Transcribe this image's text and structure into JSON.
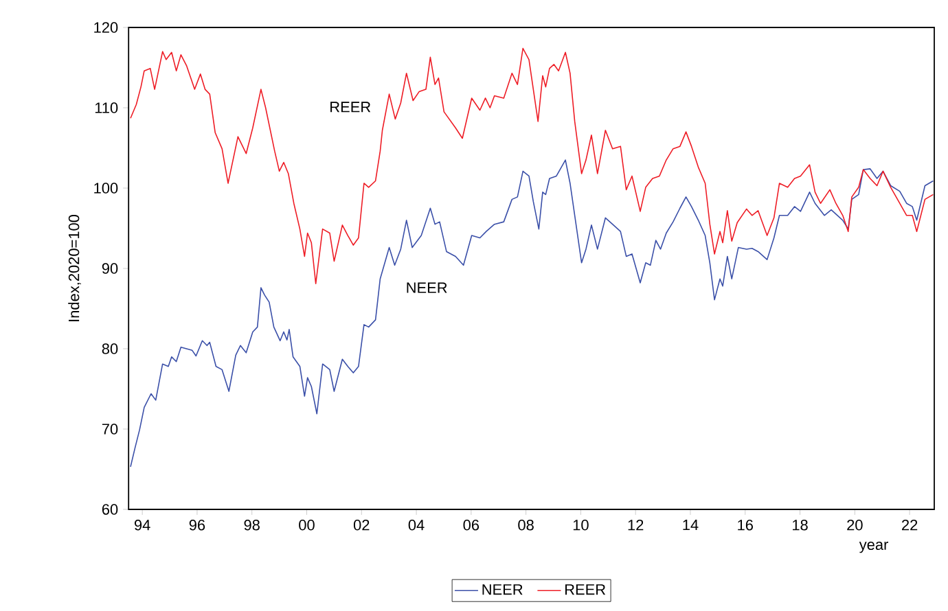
{
  "chart_data": {
    "type": "line",
    "xlabel": "year",
    "ylabel": "Index,2020=100",
    "xlim": [
      1993.5,
      2022.9
    ],
    "ylim": [
      60,
      120
    ],
    "xticks": [
      {
        "value": 1994,
        "label": "94"
      },
      {
        "value": 1996,
        "label": "96"
      },
      {
        "value": 1998,
        "label": "98"
      },
      {
        "value": 2000,
        "label": "00"
      },
      {
        "value": 2002,
        "label": "02"
      },
      {
        "value": 2004,
        "label": "04"
      },
      {
        "value": 2006,
        "label": "06"
      },
      {
        "value": 2008,
        "label": "08"
      },
      {
        "value": 2010,
        "label": "10"
      },
      {
        "value": 2012,
        "label": "12"
      },
      {
        "value": 2014,
        "label": "14"
      },
      {
        "value": 2016,
        "label": "16"
      },
      {
        "value": 2018,
        "label": "18"
      },
      {
        "value": 2020,
        "label": "20"
      },
      {
        "value": 2022,
        "label": "22"
      }
    ],
    "yticks": [
      60,
      70,
      80,
      90,
      100,
      110,
      120
    ],
    "grid": false,
    "legend": "bottom",
    "marker": "none",
    "line_style": "solid",
    "annotations": [
      "REER",
      "NEER"
    ],
    "series": [
      {
        "name": "NEER",
        "color": "#3a4fa8",
        "x": [
          1993.57,
          1993.73,
          1993.9,
          1994.07,
          1994.32,
          1994.49,
          1994.74,
          1994.95,
          1995.07,
          1995.24,
          1995.41,
          1995.82,
          1995.96,
          1996.19,
          1996.36,
          1996.46,
          1996.69,
          1996.91,
          1997.16,
          1997.41,
          1997.58,
          1997.79,
          1998.03,
          1998.2,
          1998.33,
          1998.46,
          1998.63,
          1998.8,
          1999.03,
          1999.16,
          1999.28,
          1999.36,
          1999.5,
          1999.75,
          1999.92,
          2000.03,
          2000.17,
          2000.37,
          2000.58,
          2000.84,
          2001.0,
          2001.3,
          2001.5,
          2001.7,
          2001.89,
          2002.09,
          2002.26,
          2002.51,
          2002.68,
          2003.01,
          2003.21,
          2003.43,
          2003.64,
          2003.85,
          2004.18,
          2004.51,
          2004.68,
          2004.85,
          2005.1,
          2005.43,
          2005.72,
          2006.02,
          2006.32,
          2006.55,
          2006.85,
          2007.19,
          2007.49,
          2007.69,
          2007.89,
          2008.11,
          2008.27,
          2008.47,
          2008.61,
          2008.72,
          2008.86,
          2009.11,
          2009.44,
          2009.61,
          2009.78,
          2010.03,
          2010.19,
          2010.39,
          2010.61,
          2010.9,
          2011.16,
          2011.45,
          2011.66,
          2011.87,
          2012.17,
          2012.37,
          2012.54,
          2012.74,
          2012.91,
          2013.12,
          2013.37,
          2013.62,
          2013.84,
          2014.04,
          2014.29,
          2014.54,
          2014.71,
          2014.88,
          2015.08,
          2015.18,
          2015.35,
          2015.51,
          2015.75,
          2016.05,
          2016.25,
          2016.47,
          2016.8,
          2017.05,
          2017.25,
          2017.55,
          2017.8,
          2018.02,
          2018.35,
          2018.55,
          2018.89,
          2019.14,
          2019.56,
          2019.76,
          2019.89,
          2020.14,
          2020.31,
          2020.56,
          2020.81,
          2021.03,
          2021.31,
          2021.64,
          2021.89,
          2022.1,
          2022.26,
          2022.56,
          2022.86
        ],
        "values": [
          65.3,
          67.6,
          69.9,
          72.7,
          74.4,
          73.6,
          78.1,
          77.8,
          79.0,
          78.4,
          80.2,
          79.8,
          79.1,
          81.0,
          80.4,
          80.8,
          77.8,
          77.4,
          74.7,
          79.2,
          80.4,
          79.5,
          82.1,
          82.7,
          87.6,
          86.7,
          85.8,
          82.7,
          81.0,
          82.1,
          81.1,
          82.4,
          79.0,
          77.8,
          74.1,
          76.4,
          75.3,
          71.9,
          78.1,
          77.4,
          74.7,
          78.7,
          77.8,
          77.0,
          77.8,
          83.0,
          82.7,
          83.6,
          88.7,
          92.6,
          90.4,
          92.4,
          96.0,
          92.6,
          94.1,
          97.5,
          95.5,
          95.8,
          92.1,
          91.5,
          90.4,
          94.1,
          93.8,
          94.6,
          95.5,
          95.8,
          98.6,
          98.9,
          102.1,
          101.5,
          98.3,
          94.9,
          99.5,
          99.2,
          101.2,
          101.5,
          103.5,
          100.6,
          96.6,
          90.7,
          92.4,
          95.4,
          92.4,
          96.3,
          95.5,
          94.6,
          91.5,
          91.8,
          88.2,
          90.7,
          90.4,
          93.5,
          92.4,
          94.4,
          95.8,
          97.5,
          98.9,
          97.7,
          96.0,
          94.1,
          90.7,
          86.1,
          88.7,
          87.8,
          91.5,
          88.7,
          92.6,
          92.4,
          92.5,
          92.1,
          91.1,
          93.8,
          96.6,
          96.6,
          97.7,
          97.1,
          99.5,
          98.1,
          96.6,
          97.3,
          96.0,
          94.9,
          98.6,
          99.2,
          102.3,
          102.4,
          101.2,
          102.1,
          100.3,
          99.6,
          98.1,
          97.7,
          96.0,
          100.3,
          100.9
        ]
      },
      {
        "name": "REER",
        "color": "#ee1c25",
        "x": [
          1993.57,
          1993.78,
          1993.95,
          1994.07,
          1994.29,
          1994.45,
          1994.74,
          1994.87,
          1995.07,
          1995.24,
          1995.41,
          1995.62,
          1995.91,
          1996.12,
          1996.29,
          1996.46,
          1996.66,
          1996.91,
          1997.13,
          1997.49,
          1997.79,
          1998.03,
          1998.33,
          1998.5,
          1998.83,
          1999.0,
          1999.16,
          1999.33,
          1999.53,
          1999.75,
          1999.92,
          2000.03,
          2000.17,
          2000.33,
          2000.58,
          2000.84,
          2001.0,
          2001.3,
          2001.5,
          2001.7,
          2001.89,
          2002.09,
          2002.26,
          2002.51,
          2002.68,
          2002.76,
          2003.01,
          2003.23,
          2003.43,
          2003.64,
          2003.88,
          2004.1,
          2004.35,
          2004.51,
          2004.68,
          2004.81,
          2005.01,
          2005.43,
          2005.68,
          2006.02,
          2006.32,
          2006.52,
          2006.69,
          2006.85,
          2007.19,
          2007.49,
          2007.69,
          2007.89,
          2008.11,
          2008.44,
          2008.61,
          2008.72,
          2008.86,
          2009.02,
          2009.19,
          2009.44,
          2009.61,
          2009.78,
          2010.03,
          2010.19,
          2010.39,
          2010.61,
          2010.9,
          2011.16,
          2011.45,
          2011.66,
          2011.87,
          2012.17,
          2012.37,
          2012.62,
          2012.87,
          2013.12,
          2013.37,
          2013.62,
          2013.84,
          2014.04,
          2014.29,
          2014.54,
          2014.71,
          2014.88,
          2015.08,
          2015.18,
          2015.35,
          2015.51,
          2015.71,
          2016.05,
          2016.25,
          2016.47,
          2016.8,
          2017.05,
          2017.25,
          2017.55,
          2017.8,
          2018.02,
          2018.35,
          2018.55,
          2018.75,
          2019.09,
          2019.31,
          2019.56,
          2019.76,
          2019.89,
          2020.14,
          2020.31,
          2020.56,
          2020.81,
          2021.03,
          2021.31,
          2021.64,
          2021.89,
          2022.1,
          2022.26,
          2022.56,
          2022.86
        ],
        "values": [
          108.7,
          110.4,
          112.6,
          114.6,
          114.9,
          112.3,
          117.0,
          116.0,
          116.9,
          114.6,
          116.6,
          115.2,
          112.3,
          114.2,
          112.3,
          111.7,
          106.9,
          104.9,
          100.6,
          106.4,
          104.3,
          107.5,
          112.3,
          110.0,
          104.6,
          102.1,
          103.2,
          101.8,
          98.1,
          94.9,
          91.5,
          94.4,
          93.2,
          88.1,
          94.9,
          94.4,
          90.9,
          95.4,
          94.1,
          92.9,
          93.8,
          100.6,
          100.1,
          100.9,
          104.6,
          107.2,
          111.7,
          108.6,
          110.6,
          114.3,
          110.9,
          112.0,
          112.3,
          116.3,
          112.9,
          113.7,
          109.5,
          107.5,
          106.2,
          111.2,
          109.7,
          111.2,
          110.0,
          111.5,
          111.2,
          114.3,
          112.9,
          117.4,
          116.0,
          108.3,
          114.0,
          112.6,
          114.9,
          115.4,
          114.6,
          116.9,
          114.3,
          108.3,
          101.8,
          103.5,
          106.6,
          101.8,
          107.2,
          104.9,
          105.2,
          99.8,
          101.5,
          97.1,
          100.1,
          101.2,
          101.5,
          103.5,
          104.9,
          105.2,
          107.0,
          105.2,
          102.6,
          100.6,
          95.5,
          91.8,
          94.6,
          93.2,
          97.2,
          93.4,
          95.7,
          97.4,
          96.6,
          97.2,
          94.1,
          96.3,
          100.6,
          100.1,
          101.2,
          101.5,
          102.9,
          99.5,
          98.1,
          99.8,
          98.1,
          96.6,
          94.6,
          98.9,
          100.1,
          102.3,
          101.2,
          100.3,
          102.1,
          100.1,
          98.1,
          96.6,
          96.6,
          94.6,
          98.6,
          99.2
        ]
      }
    ]
  }
}
